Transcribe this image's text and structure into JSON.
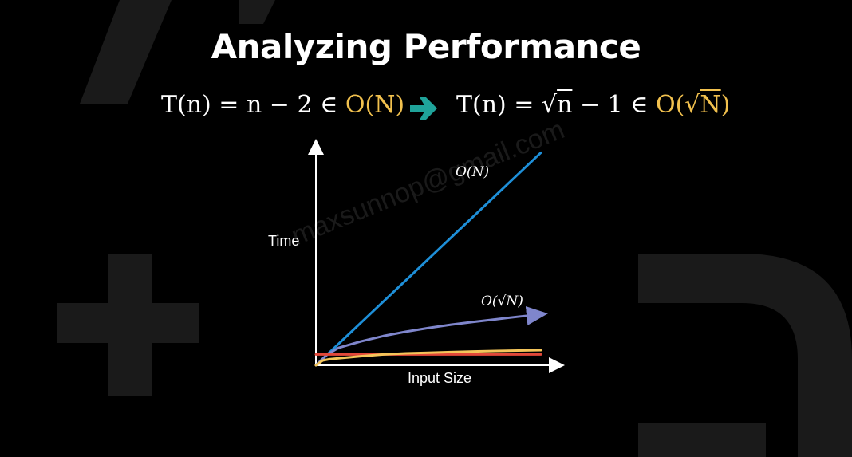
{
  "title": "Analyzing Performance",
  "formula_left": {
    "lhs": "T(n) = n − 2 ∈ ",
    "big_o": "O(N)"
  },
  "formula_right": {
    "lhs_prefix": "T(n) = ",
    "sqrt_arg": "n",
    "lhs_suffix": " − 1 ∈ ",
    "big_o_prefix": "O(",
    "big_o_sqrt_arg": "N",
    "big_o_suffix": ")"
  },
  "watermark": "maxsunnop@gmail.com",
  "colors": {
    "accent_gold": "#f2c14e",
    "arrow_teal": "#1fa39a",
    "linear": "#1e8fd8",
    "sqrt": "#7f86cc",
    "constant": "#e2483a",
    "log": "#f4c55a"
  },
  "chart_data": {
    "type": "line",
    "xlabel": "Input Size",
    "ylabel": "Time",
    "xlim": [
      0,
      10
    ],
    "ylim": [
      0,
      10
    ],
    "series": [
      {
        "name": "O(N)",
        "color": "#1e8fd8",
        "arrow": false,
        "x": [
          0,
          10
        ],
        "y": [
          0,
          9.8
        ]
      },
      {
        "name": "O(√N)",
        "color": "#7f86cc",
        "arrow": true,
        "x": [
          0,
          0.5,
          1,
          2,
          3,
          4,
          5,
          6,
          7,
          8,
          9,
          10
        ],
        "y": [
          0,
          0.5,
          0.8,
          1.1,
          1.35,
          1.55,
          1.72,
          1.87,
          2.0,
          2.12,
          2.24,
          2.35
        ]
      },
      {
        "x": [
          0,
          10
        ],
        "y": [
          0.5,
          0.5
        ],
        "color": "#e2483a",
        "arrow": false
      },
      {
        "color": "#f4c55a",
        "arrow": false,
        "x": [
          0,
          0.3,
          0.6,
          1,
          2,
          3,
          4,
          5,
          6,
          7,
          8,
          9,
          10
        ],
        "y": [
          0,
          0.22,
          0.28,
          0.32,
          0.42,
          0.5,
          0.55,
          0.58,
          0.61,
          0.64,
          0.66,
          0.68,
          0.7
        ]
      }
    ],
    "grid": false
  }
}
